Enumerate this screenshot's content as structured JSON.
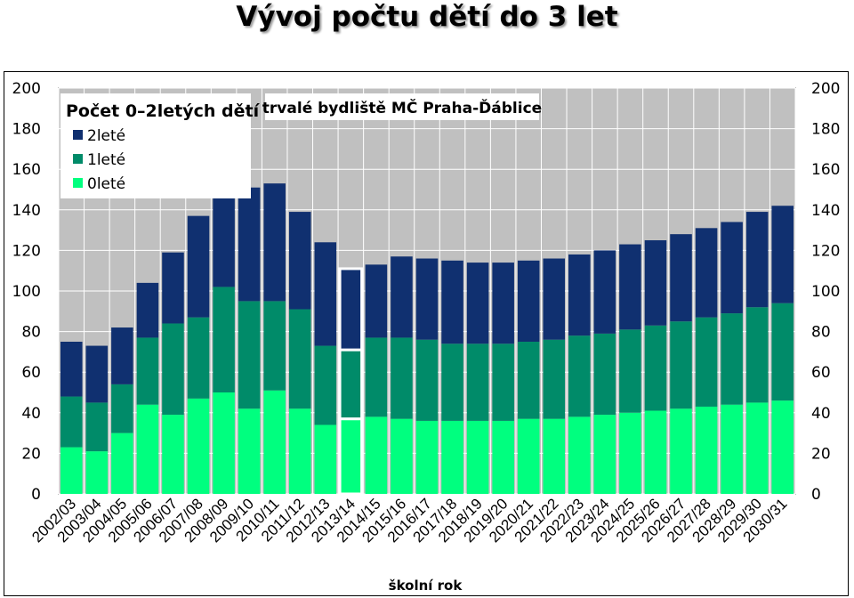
{
  "title": "Vývoj počtu dětí do 3 let",
  "chart_data": {
    "type": "bar",
    "stacked": true,
    "categories": [
      "2002/03",
      "2003/04",
      "2004/05",
      "2005/06",
      "2006/07",
      "2007/08",
      "2008/09",
      "2009/10",
      "2010/11",
      "2011/12",
      "2012/13",
      "2013/14",
      "2014/15",
      "2015/16",
      "2016/17",
      "2017/18",
      "2018/19",
      "2019/20",
      "2020/21",
      "2021/22",
      "2022/23",
      "2023/24",
      "2024/25",
      "2025/26",
      "2026/27",
      "2027/28",
      "2028/29",
      "2029/30",
      "2030/31"
    ],
    "series": [
      {
        "name": "0leté",
        "color": "#00ff7f",
        "values": [
          23,
          21,
          30,
          44,
          39,
          47,
          50,
          42,
          51,
          42,
          34,
          37,
          38,
          37,
          36,
          36,
          36,
          36,
          37,
          37,
          38,
          39,
          40,
          41,
          42,
          43,
          44,
          45,
          46
        ]
      },
      {
        "name": "1leté",
        "color": "#008b69",
        "values": [
          25,
          24,
          24,
          33,
          45,
          40,
          52,
          53,
          44,
          49,
          39,
          34,
          39,
          40,
          40,
          38,
          38,
          38,
          38,
          39,
          40,
          40,
          41,
          42,
          43,
          44,
          45,
          47,
          48
        ]
      },
      {
        "name": "2leté",
        "color": "#103070",
        "values": [
          27,
          28,
          28,
          27,
          35,
          50,
          44,
          56,
          58,
          48,
          51,
          40,
          36,
          40,
          40,
          41,
          40,
          40,
          40,
          40,
          40,
          41,
          42,
          42,
          43,
          44,
          45,
          47,
          48
        ]
      }
    ],
    "highlighted_category": "2013/14",
    "legend_title": "Počet 0–2letých dětí",
    "subtitle": "trvalé bydliště MČ Praha-Ďáblice",
    "xlabel": "školní rok",
    "ylabel": "",
    "ylim": [
      0,
      200
    ],
    "yticks": [
      0,
      20,
      40,
      60,
      80,
      100,
      120,
      140,
      160,
      180,
      200
    ],
    "grid": true,
    "legend_position": "top-left",
    "plot_background": "#c0c0c0"
  }
}
